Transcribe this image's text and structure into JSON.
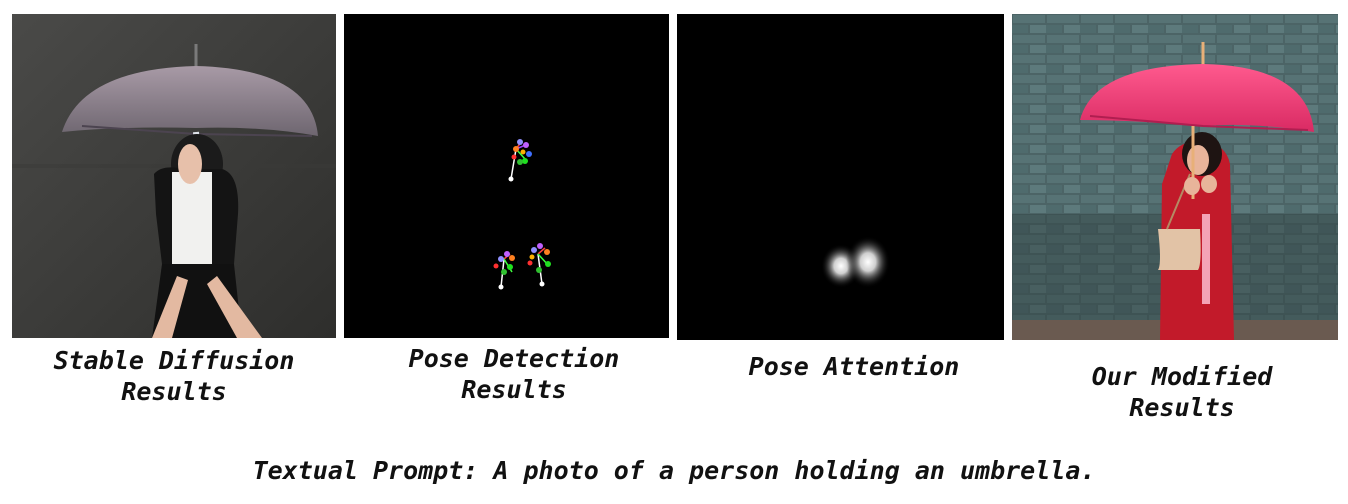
{
  "panels": [
    {
      "label_lines": [
        "Stable Diffusion",
        "Results"
      ],
      "image": "photo-person-grey-umbrella"
    },
    {
      "label_lines": [
        "Pose Detection",
        "Results"
      ],
      "image": "pose-keypoints-on-black"
    },
    {
      "label_lines": [
        "Pose Attention"
      ],
      "image": "attention-heatmap-on-black"
    },
    {
      "label_lines": [
        "Our Modified",
        "Results"
      ],
      "image": "photo-person-red-umbrella"
    }
  ],
  "caption": "Textual Prompt: A photo of a person holding an umbrella.",
  "colors": {
    "background": "#ffffff",
    "text": "#111111",
    "black_panel": "#000000"
  }
}
